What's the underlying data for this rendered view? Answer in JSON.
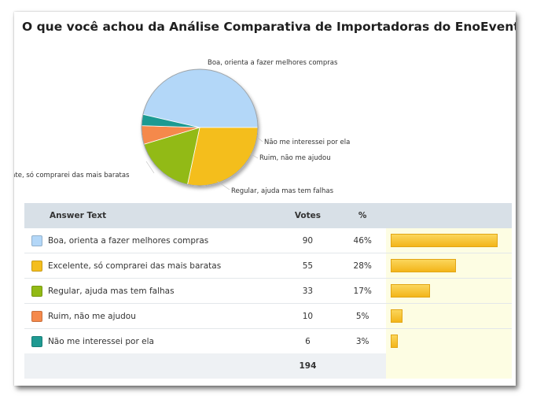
{
  "question": "O que você achou da Análise Comparativa de Importadoras do EnoEventos?",
  "table": {
    "headers": {
      "answer": "Answer Text",
      "votes": "Votes",
      "percent": "%"
    },
    "total": "194"
  },
  "chart_data": {
    "type": "pie",
    "title": "O que você achou da Análise Comparativa de Importadoras do EnoEventos?",
    "categories": [
      "Boa, orienta a fazer melhores compras",
      "Excelente, só comprarei das mais baratas",
      "Regular, ajuda mas tem falhas",
      "Ruim, não me ajudou",
      "Não me interessei por ela"
    ],
    "values": [
      90,
      55,
      33,
      10,
      6
    ],
    "percents": [
      "46%",
      "28%",
      "17%",
      "5%",
      "3%"
    ],
    "colors": [
      "#b3d7f8",
      "#f4be1e",
      "#92ba15",
      "#f5894b",
      "#1f9a92"
    ],
    "pie_labels": [
      "Boa, orienta a fazer melhores compras",
      "nte, só comprarei das mais baratas",
      "Regular, ajuda mas tem falhas",
      "Ruim, não me ajudou",
      "Não me interessei por ela"
    ],
    "total": 194
  }
}
